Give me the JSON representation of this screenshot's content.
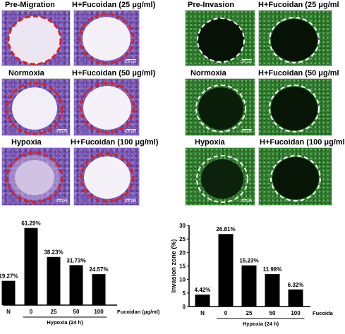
{
  "migration": {
    "labels": {
      "pre": "Pre-Migration",
      "normoxia": "Normoxia",
      "hypoxia": "Hypoxia",
      "f25": "H+Fucoidan (25 μg/ml)",
      "f50": "H+Fucoidan (50 μg/ml)",
      "f100": "H+Fucoidan (100 μg/ml)"
    },
    "scale_bar": "100 μm",
    "ring_color": "#e0201e",
    "stain_color": "#7a58b8"
  },
  "invasion": {
    "labels": {
      "pre": "Pre-Invasion",
      "normoxia": "Normoxia",
      "hypoxia": "Hypoxia",
      "f25": "H+Fucoidan (25 μg/ml",
      "f50": "H+Fucoidan (50 μg/ml",
      "f100": "H+Fucoidan (100 μg/ml"
    },
    "scale_bar": "100 μm",
    "ring_color": "#ffffff",
    "stain_color": "#2f7a30"
  },
  "chart_data": [
    {
      "type": "bar",
      "categories": [
        "N",
        "0",
        "25",
        "50",
        "100"
      ],
      "values": [
        19.27,
        61.29,
        38.23,
        31.73,
        24.57
      ],
      "data_labels": [
        "19.27%",
        "61.29%",
        "38.23%",
        "31.73%",
        "24.57%"
      ],
      "ylim": [
        0,
        70
      ],
      "x_extra_label": "Fucoidan (μg/ml)",
      "x_group_label": "Hypoxia (24 h)",
      "ylabel": "",
      "bar_colors": [
        "#000000",
        "#000000",
        "#000000",
        "#000000",
        "#000000"
      ]
    },
    {
      "type": "bar",
      "categories": [
        "N",
        "0",
        "25",
        "50",
        "100"
      ],
      "values": [
        4.42,
        26.81,
        15.23,
        11.98,
        6.32
      ],
      "data_labels": [
        "4.42%",
        "26.81%",
        "15.23%",
        "11.98%",
        "6.32%"
      ],
      "ylim": [
        0,
        30
      ],
      "yticks": [
        0,
        5,
        10,
        15,
        20,
        25,
        30
      ],
      "ytick_labels": [
        "0",
        "5",
        "10",
        "15",
        "20",
        "25",
        "30"
      ],
      "ylabel": "Invasion zone (%)",
      "x_extra_label": "Fucoida",
      "x_group_label": "Hypoxia (24 h)",
      "bar_colors": [
        "#000000",
        "#000000",
        "#000000",
        "#000000",
        "#000000"
      ]
    }
  ]
}
